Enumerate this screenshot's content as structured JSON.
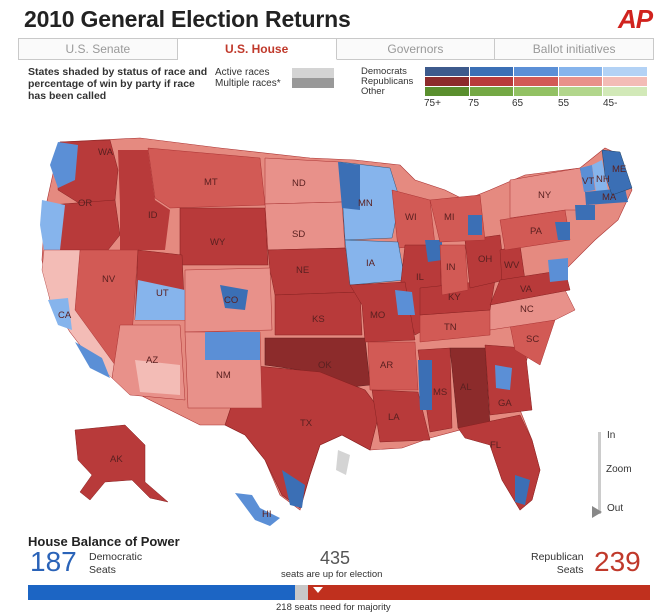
{
  "header": {
    "title": "2010 General Election Returns",
    "logo": "AP"
  },
  "tabs": [
    {
      "label": "U.S. Senate",
      "active": false
    },
    {
      "label": "U.S. House",
      "active": true
    },
    {
      "label": "Governors",
      "active": false
    },
    {
      "label": "Ballot initiatives",
      "active": false
    }
  ],
  "legend": {
    "description": "States shaded by status of race and percentage of win by party if race has been called",
    "active_races": "Active races",
    "multiple_races": "Multiple races*",
    "parties": [
      "Democrats",
      "Republicans",
      "Other"
    ],
    "ticks": [
      "75+",
      "75",
      "65",
      "55",
      "45-"
    ],
    "colors": {
      "dem": [
        "#3d5a8c",
        "#3b6fb5",
        "#5b8fd6",
        "#86b4ec",
        "#b3d2f5"
      ],
      "rep": [
        "#8c2b2b",
        "#b83a3a",
        "#d25a55",
        "#e8918a",
        "#f3bcb6"
      ],
      "other": [
        "#5a8f2e",
        "#74a844",
        "#92c163",
        "#b2d68c",
        "#d2e9b8"
      ],
      "active": "#d4d4d4",
      "multiple": "#999999"
    }
  },
  "map": {
    "state_labels": [
      "WA",
      "OR",
      "ID",
      "MT",
      "WY",
      "ND",
      "SD",
      "NE",
      "KS",
      "OK",
      "TX",
      "NV",
      "CA",
      "AZ",
      "NM",
      "CO",
      "UT",
      "MN",
      "IA",
      "IL",
      "MO",
      "AR",
      "LA",
      "MS",
      "AL",
      "GA",
      "FL",
      "SC",
      "NC",
      "TN",
      "KY",
      "IN",
      "OH",
      "MI",
      "WI",
      "PA",
      "NY",
      "VA",
      "WV",
      "ME",
      "VT",
      "NH",
      "MA",
      "AK",
      "HI"
    ]
  },
  "zoom": {
    "in": "In",
    "zoom": "Zoom",
    "out": "Out"
  },
  "balance": {
    "title": "House Balance of Power",
    "dem_count": "187",
    "dem_label_1": "Democratic",
    "dem_label_2": "Seats",
    "total": "435",
    "total_label": "seats are up for election",
    "rep_label_1": "Republican",
    "rep_label_2": "Seats",
    "rep_count": "239",
    "majority_label": "218 seats need for majority",
    "dem_seats": 187,
    "undecided_seats": 9,
    "rep_seats": 239
  }
}
